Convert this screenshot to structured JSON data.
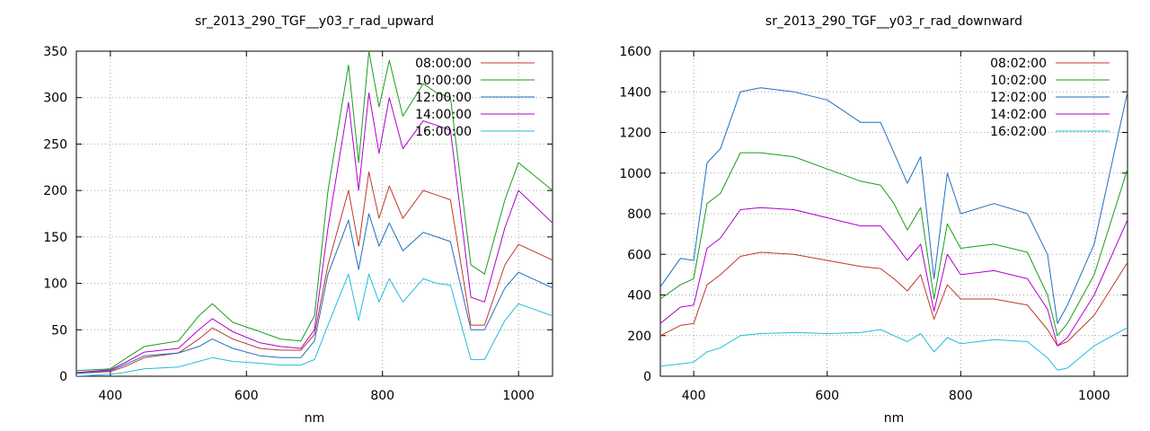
{
  "chart_data": [
    {
      "type": "line",
      "title": "sr_2013_290_TGF__y03_r_rad_upward",
      "xlabel": "nm",
      "ylabel": "",
      "xlim": [
        350,
        1050
      ],
      "ylim": [
        0,
        350
      ],
      "xticks": [
        400,
        600,
        800,
        1000
      ],
      "yticks": [
        0,
        50,
        100,
        150,
        200,
        250,
        300,
        350
      ],
      "grid": true,
      "legend_position": "top-right",
      "x": [
        350,
        400,
        420,
        450,
        500,
        530,
        550,
        580,
        620,
        650,
        680,
        700,
        720,
        750,
        765,
        780,
        795,
        810,
        830,
        860,
        880,
        900,
        930,
        950,
        980,
        1000,
        1050
      ],
      "series": [
        {
          "name": "08:00:00",
          "color": "#c0392b",
          "values": [
            3,
            5,
            10,
            20,
            25,
            40,
            52,
            40,
            30,
            28,
            28,
            45,
            120,
            200,
            140,
            220,
            170,
            205,
            170,
            200,
            195,
            190,
            55,
            55,
            120,
            142,
            125
          ]
        },
        {
          "name": "10:00:00",
          "color": "#1a9e1a",
          "values": [
            6,
            8,
            18,
            32,
            38,
            65,
            78,
            58,
            48,
            40,
            38,
            65,
            200,
            335,
            230,
            350,
            290,
            340,
            280,
            315,
            305,
            300,
            120,
            110,
            190,
            230,
            200
          ]
        },
        {
          "name": "12:00:00",
          "color": "#1f6fbf",
          "values": [
            3,
            6,
            12,
            22,
            25,
            32,
            40,
            30,
            22,
            20,
            20,
            38,
            110,
            168,
            115,
            175,
            140,
            165,
            135,
            155,
            150,
            145,
            50,
            50,
            95,
            112,
            95
          ]
        },
        {
          "name": "14:00:00",
          "color": "#b000d0",
          "values": [
            4,
            7,
            14,
            26,
            30,
            50,
            62,
            48,
            36,
            32,
            30,
            50,
            160,
            295,
            200,
            305,
            240,
            300,
            245,
            275,
            270,
            265,
            85,
            80,
            160,
            200,
            165
          ]
        },
        {
          "name": "16:00:00",
          "color": "#22bbe0",
          "values": [
            0,
            2,
            4,
            8,
            10,
            16,
            20,
            16,
            14,
            12,
            12,
            18,
            55,
            110,
            60,
            110,
            80,
            105,
            80,
            105,
            100,
            98,
            18,
            18,
            60,
            78,
            65
          ]
        }
      ]
    },
    {
      "type": "line",
      "title": "sr_2013_290_TGF__y03_r_rad_downward",
      "xlabel": "nm",
      "ylabel": "",
      "xlim": [
        350,
        1050
      ],
      "ylim": [
        0,
        1600
      ],
      "xticks": [
        400,
        600,
        800,
        1000
      ],
      "yticks": [
        0,
        200,
        400,
        600,
        800,
        1000,
        1200,
        1400,
        1600
      ],
      "grid": true,
      "legend_position": "top-right",
      "x": [
        350,
        380,
        400,
        420,
        440,
        470,
        500,
        550,
        600,
        650,
        680,
        700,
        720,
        740,
        760,
        780,
        800,
        850,
        900,
        930,
        945,
        960,
        1000,
        1050
      ],
      "series": [
        {
          "name": "08:02:00",
          "color": "#c0392b",
          "values": [
            200,
            250,
            260,
            450,
            500,
            590,
            610,
            600,
            570,
            540,
            530,
            480,
            420,
            500,
            280,
            450,
            380,
            380,
            350,
            230,
            150,
            170,
            300,
            560
          ]
        },
        {
          "name": "10:02:00",
          "color": "#1a9e1a",
          "values": [
            380,
            450,
            480,
            850,
            900,
            1100,
            1100,
            1080,
            1020,
            960,
            940,
            850,
            720,
            830,
            380,
            750,
            630,
            650,
            610,
            400,
            200,
            260,
            500,
            1020
          ]
        },
        {
          "name": "12:02:00",
          "color": "#1f6fbf",
          "values": [
            440,
            580,
            570,
            1050,
            1120,
            1400,
            1420,
            1400,
            1360,
            1250,
            1250,
            1100,
            950,
            1080,
            480,
            1000,
            800,
            850,
            800,
            600,
            260,
            350,
            650,
            1400
          ]
        },
        {
          "name": "14:02:00",
          "color": "#b000d0",
          "values": [
            260,
            340,
            350,
            630,
            680,
            820,
            830,
            820,
            780,
            740,
            740,
            660,
            570,
            650,
            320,
            600,
            500,
            520,
            480,
            330,
            150,
            190,
            400,
            770
          ]
        },
        {
          "name": "16:02:00",
          "color": "#22bbe0",
          "values": [
            50,
            60,
            70,
            120,
            140,
            200,
            210,
            215,
            210,
            215,
            230,
            200,
            170,
            210,
            120,
            190,
            160,
            180,
            170,
            90,
            30,
            40,
            150,
            240
          ]
        }
      ]
    }
  ]
}
